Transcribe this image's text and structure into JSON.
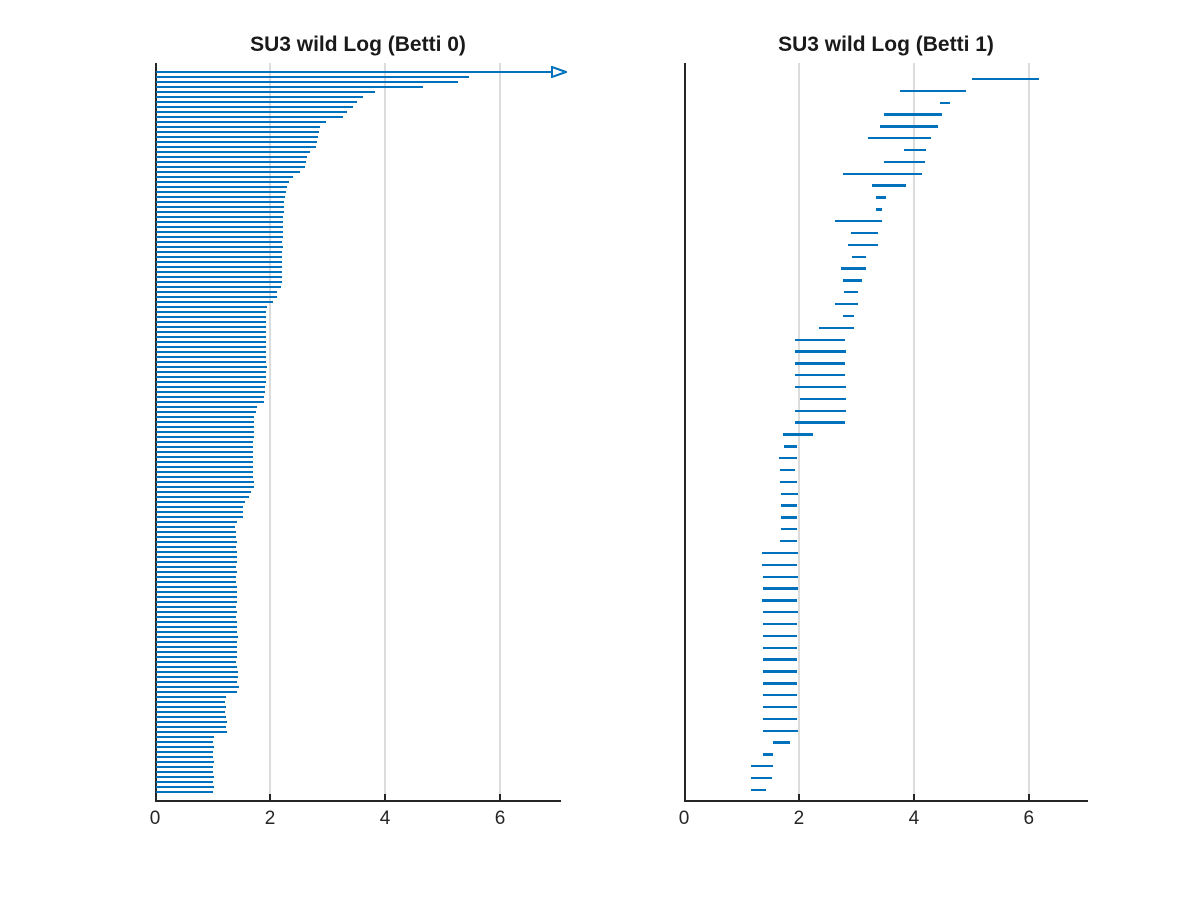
{
  "figure": {
    "background": "#ffffff",
    "bar_color": "#0072BD",
    "axis_color": "#262626",
    "grid_color": "#dcdcdc"
  },
  "chart_data": [
    {
      "type": "bar",
      "subtype": "persistence-barcode",
      "title": "SU3 wild Log (Betti 0)",
      "xlabel": "",
      "ylabel": "",
      "xlim": [
        0,
        7.06
      ],
      "xticks": [
        0,
        2,
        4,
        6
      ],
      "grid": true,
      "legend": "none",
      "note": "all intervals are born at 0; first interval is infinite (drawn with open arrowhead)",
      "deaths": [
        "inf",
        5.45,
        5.25,
        4.65,
        3.8,
        3.6,
        3.5,
        3.43,
        3.33,
        3.25,
        2.96,
        2.86,
        2.83,
        2.82,
        2.8,
        2.78,
        2.68,
        2.62,
        2.6,
        2.59,
        2.5,
        2.39,
        2.31,
        2.28,
        2.26,
        2.24,
        2.23,
        2.22,
        2.22,
        2.21,
        2.21,
        2.2,
        2.2,
        2.2,
        2.19,
        2.2,
        2.19,
        2.19,
        2.19,
        2.19,
        2.19,
        2.19,
        2.19,
        2.18,
        2.1,
        2.1,
        2.04,
        1.93,
        1.92,
        1.92,
        1.92,
        1.92,
        1.92,
        1.92,
        1.92,
        1.92,
        1.92,
        1.92,
        1.92,
        1.93,
        1.92,
        1.92,
        1.91,
        1.9,
        1.9,
        1.88,
        1.88,
        1.76,
        1.74,
        1.7,
        1.7,
        1.7,
        1.7,
        1.7,
        1.69,
        1.69,
        1.69,
        1.68,
        1.69,
        1.69,
        1.68,
        1.69,
        1.7,
        1.71,
        1.65,
        1.62,
        1.55,
        1.52,
        1.52,
        1.51,
        1.41,
        1.38,
        1.39,
        1.39,
        1.4,
        1.39,
        1.4,
        1.41,
        1.4,
        1.39,
        1.4,
        1.39,
        1.39,
        1.4,
        1.4,
        1.41,
        1.4,
        1.39,
        1.41,
        1.39,
        1.4,
        1.41,
        1.41,
        1.43,
        1.41,
        1.41,
        1.41,
        1.41,
        1.39,
        1.41,
        1.43,
        1.43,
        1.41,
        1.45,
        1.41,
        1.22,
        1.2,
        1.22,
        1.2,
        1.22,
        1.23,
        1.22,
        1.23,
        1.0,
        0.99,
        1.0,
        0.99,
        0.99,
        1.0,
        0.99,
        0.99,
        1.0,
        0.99,
        1.0,
        0.99
      ]
    },
    {
      "type": "bar",
      "subtype": "persistence-barcode",
      "title": "SU3 wild Log (Betti 1)",
      "xlabel": "",
      "ylabel": "",
      "xlim": [
        0,
        7.03
      ],
      "xticks": [
        0,
        2,
        4,
        6
      ],
      "grid": true,
      "legend": "none",
      "intervals": [
        [
          5.02,
          6.17
        ],
        [
          3.76,
          4.9
        ],
        [
          4.46,
          4.63
        ],
        [
          3.48,
          4.49
        ],
        [
          3.41,
          4.42
        ],
        [
          3.21,
          4.29
        ],
        [
          3.83,
          4.21
        ],
        [
          3.48,
          4.2
        ],
        [
          2.76,
          4.15
        ],
        [
          3.28,
          3.86
        ],
        [
          3.34,
          3.51
        ],
        [
          3.34,
          3.44
        ],
        [
          2.63,
          3.45
        ],
        [
          2.9,
          3.37
        ],
        [
          2.86,
          3.37
        ],
        [
          2.92,
          3.16
        ],
        [
          2.73,
          3.16
        ],
        [
          2.77,
          3.09
        ],
        [
          2.78,
          3.02
        ],
        [
          2.63,
          3.03
        ],
        [
          2.76,
          2.96
        ],
        [
          2.35,
          2.96
        ],
        [
          1.94,
          2.81
        ],
        [
          1.93,
          2.82
        ],
        [
          1.94,
          2.81
        ],
        [
          1.93,
          2.81
        ],
        [
          1.94,
          2.82
        ],
        [
          2.02,
          2.82
        ],
        [
          1.94,
          2.82
        ],
        [
          1.93,
          2.81
        ],
        [
          1.73,
          2.25
        ],
        [
          1.74,
          1.97
        ],
        [
          1.65,
          1.96
        ],
        [
          1.67,
          1.94
        ],
        [
          1.67,
          1.97
        ],
        [
          1.68,
          1.99
        ],
        [
          1.68,
          1.97
        ],
        [
          1.68,
          1.96
        ],
        [
          1.68,
          1.97
        ],
        [
          1.67,
          1.97
        ],
        [
          1.36,
          1.99
        ],
        [
          1.36,
          1.97
        ],
        [
          1.38,
          1.99
        ],
        [
          1.38,
          1.99
        ],
        [
          1.36,
          1.97
        ],
        [
          1.37,
          1.98
        ],
        [
          1.38,
          1.97
        ],
        [
          1.37,
          1.97
        ],
        [
          1.38,
          1.97
        ],
        [
          1.37,
          1.96
        ],
        [
          1.37,
          1.97
        ],
        [
          1.37,
          1.97
        ],
        [
          1.38,
          1.97
        ],
        [
          1.37,
          1.96
        ],
        [
          1.37,
          1.97
        ],
        [
          1.38,
          1.98
        ],
        [
          1.54,
          1.84
        ],
        [
          1.38,
          1.55
        ],
        [
          1.17,
          1.55
        ],
        [
          1.16,
          1.54
        ],
        [
          1.16,
          1.42
        ]
      ]
    }
  ]
}
